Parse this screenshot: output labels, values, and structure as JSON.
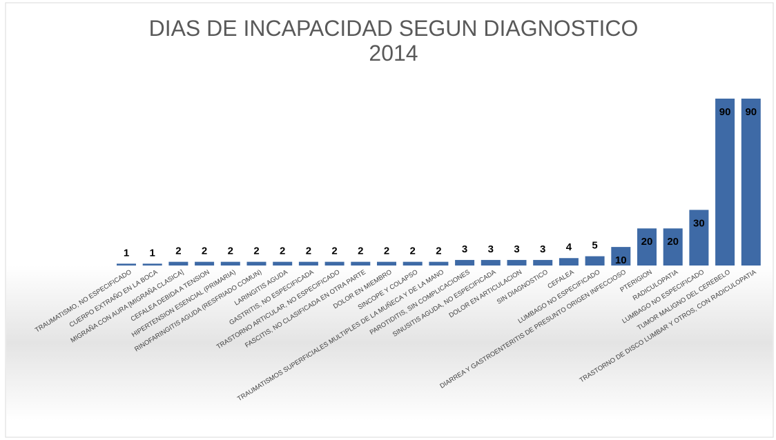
{
  "chart_data": {
    "type": "bar",
    "title": [
      "DIAS DE INCAPACIDAD SEGUN DIAGNOSTICO",
      "2014"
    ],
    "categories": [
      "TRAUMATISMO, NO ESPECIFICADO",
      "CUERPO EXTRAÑO EN LA BOCA",
      "MIGRAÑA CON AURA [MIGRAÑA CLASICA]",
      "CEFALEA DEBIDA A TENSION",
      "HIPERTENSION ESENCIAL (PRIMARIA)",
      "RINOFARINGITIS AGUDA (RESFRIADO COMUN)",
      "LARINGITIS AGUDA",
      "GASTRITIS, NO ESPECIFICADA",
      "TRASTORNO ARTICULAR, NO ESPECIFICADO",
      "FASCITIS, NO CLASIFICADA EN OTRA PARTE",
      "DOLOR EN MIEMBRO",
      "SINCOPE Y COLAPSO",
      "TRAUMATISMOS SUPERFICIALES MULTIPLES DE LA MUÑECA Y DE LA MANO",
      "PAROTIDITIS, SIN COMPLICACIONES",
      "SINUSITIS AGUDA, NO ESPECIFICADA",
      "DOLOR EN ARTICULACION",
      "SIN DIAGNOSTICO",
      "CEFALEA",
      "LUMBAGO NO ESPECIFICADO",
      "DIARREA Y GASTROENTERITIS DE PRESUNTO ORIGEN INFECCIOSO",
      "PTERIGION",
      "RADICULOPATIA",
      "LUMBAGO NO ESPECIFICADO",
      "TUMOR MALIGNO DEL CEREBELO",
      "TRASTORNO DE DISCO LUMBAR Y OTROS, CON RADICULOPATIA"
    ],
    "values": [
      1,
      1,
      2,
      2,
      2,
      2,
      2,
      2,
      2,
      2,
      2,
      2,
      2,
      3,
      3,
      3,
      3,
      4,
      5,
      10,
      20,
      20,
      30,
      90,
      90
    ],
    "color": "#3e6aa6"
  }
}
